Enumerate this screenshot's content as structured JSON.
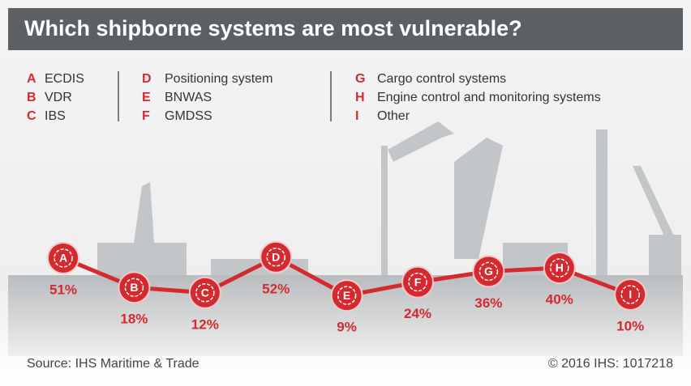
{
  "chart_data": {
    "type": "line",
    "title": "Which shipborne systems are most vulnerable?",
    "categories": [
      "A",
      "B",
      "C",
      "D",
      "E",
      "F",
      "G",
      "H",
      "I"
    ],
    "category_names": [
      "ECDIS",
      "VDR",
      "IBS",
      "Positioning system",
      "BNWAS",
      "GMDSS",
      "Cargo control systems",
      "Engine control and monitoring systems",
      "Other"
    ],
    "values": [
      51,
      18,
      12,
      52,
      9,
      24,
      36,
      40,
      10
    ],
    "value_labels": [
      "51%",
      "18%",
      "12%",
      "52%",
      "9%",
      "24%",
      "36%",
      "40%",
      "10%"
    ],
    "color": "#d42a2f",
    "source": "Source: IHS Maritime & Trade",
    "copyright": "© 2016 IHS: 1017218"
  }
}
